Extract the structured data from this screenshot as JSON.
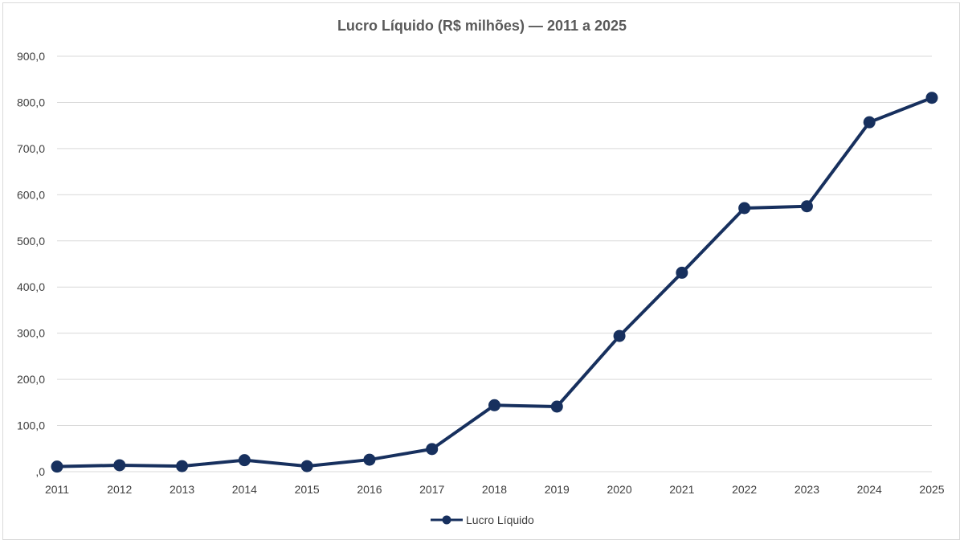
{
  "chart_data": {
    "type": "line",
    "title": "Lucro Líquido (R$ milhões) — 2011 a 2025",
    "xlabel": "",
    "ylabel": "",
    "categories": [
      "2011",
      "2012",
      "2013",
      "2014",
      "2015",
      "2016",
      "2017",
      "2018",
      "2019",
      "2020",
      "2021",
      "2022",
      "2023",
      "2024",
      "2025"
    ],
    "series": [
      {
        "name": "Lucro Líquido",
        "color": "#17305e",
        "values": [
          11,
          14,
          12,
          25,
          12,
          26,
          49,
          144,
          141,
          294,
          431,
          571,
          575,
          757,
          810
        ]
      }
    ],
    "ylim": [
      0,
      900
    ],
    "yticks": [
      ",0",
      "100,0",
      "200,0",
      "300,0",
      "400,0",
      "500,0",
      "600,0",
      "700,0",
      "800,0",
      "900,0"
    ],
    "grid": true,
    "legend_position": "bottom"
  }
}
